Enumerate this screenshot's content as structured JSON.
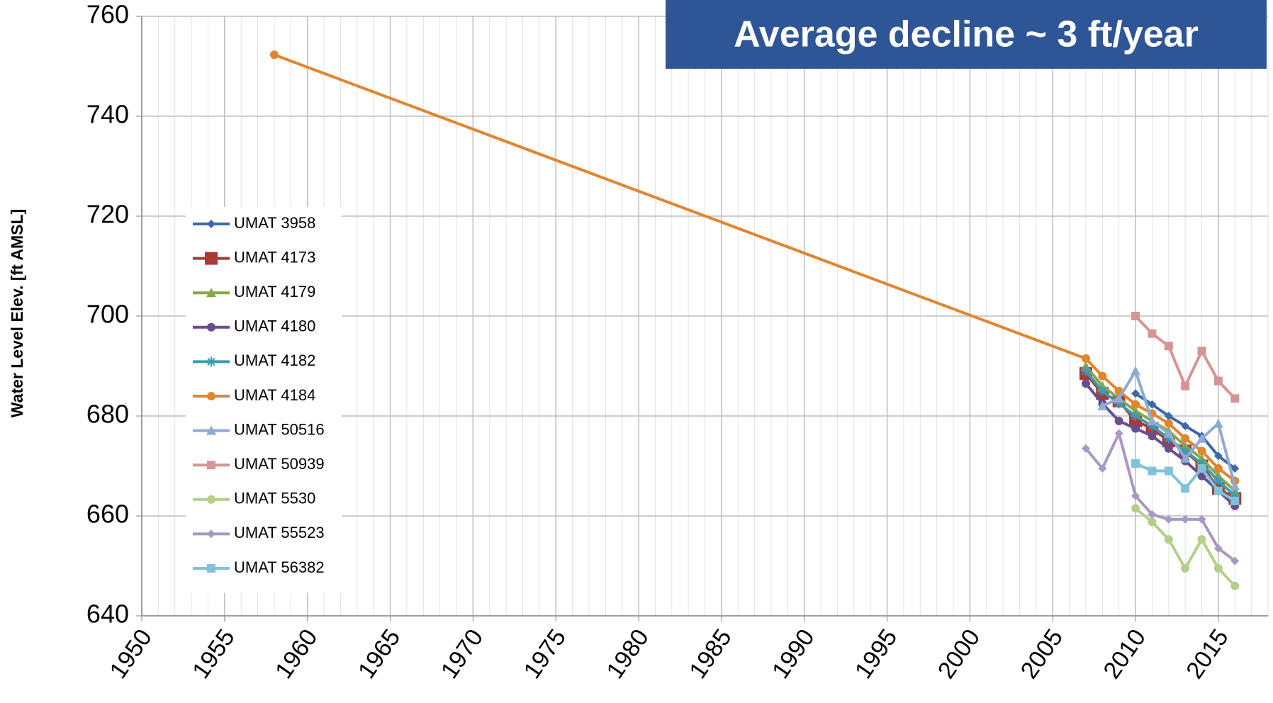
{
  "chart_data": {
    "type": "line",
    "annotation": "Average decline ~ 3 ft/year",
    "y_label": "Water Level Elev. [ft AMSL]",
    "x": [
      1958,
      2007,
      2008,
      2009,
      2010,
      2011,
      2012,
      2013,
      2014,
      2015,
      2016
    ],
    "xlim": [
      1950,
      2018
    ],
    "xticks": [
      1950,
      1955,
      1960,
      1965,
      1970,
      1975,
      1980,
      1985,
      1990,
      1995,
      2000,
      2005,
      2010,
      2015
    ],
    "ylim": [
      640,
      760
    ],
    "yticks": [
      640,
      660,
      680,
      700,
      720,
      740,
      760
    ],
    "grid": true,
    "minor_grid": true,
    "legend": "left",
    "series": [
      {
        "name": "UMAT 3958",
        "color": "#3c6aa8",
        "marker": "diamond",
        "values": [
          null,
          null,
          null,
          null,
          684.5,
          682.3,
          680,
          678,
          676,
          672,
          669.5
        ]
      },
      {
        "name": "UMAT 4173",
        "color": "#a83a37",
        "marker": "square-large",
        "values": [
          null,
          688.5,
          684.5,
          683,
          679,
          677.5,
          675,
          673,
          670,
          665.5,
          663.5
        ]
      },
      {
        "name": "UMAT 4179",
        "color": "#86a84a",
        "marker": "triangle",
        "values": [
          null,
          690,
          686,
          683.5,
          681,
          679,
          677,
          674,
          671.5,
          668,
          665
        ]
      },
      {
        "name": "UMAT 4180",
        "color": "#6a4d8e",
        "marker": "circle",
        "values": [
          null,
          686.5,
          682.5,
          679,
          677.5,
          676,
          673.5,
          671,
          668,
          665,
          662
        ]
      },
      {
        "name": "UMAT 4182",
        "color": "#3b9bb3",
        "marker": "asterisk",
        "values": [
          null,
          689,
          685,
          682.5,
          680,
          678,
          675.5,
          673,
          670.5,
          667,
          664
        ]
      },
      {
        "name": "UMAT 4184",
        "color": "#e1852f",
        "marker": "circle",
        "values": [
          752.3,
          691.5,
          688,
          685,
          682.3,
          680.5,
          678.5,
          675.5,
          673,
          669.5,
          667
        ]
      },
      {
        "name": "UMAT 50516",
        "color": "#8eaad6",
        "marker": "triangle",
        "values": [
          null,
          null,
          682,
          683.5,
          689,
          679,
          676.5,
          671.5,
          675.5,
          678.5,
          666
        ]
      },
      {
        "name": "UMAT 50939",
        "color": "#d69594",
        "marker": "square",
        "values": [
          null,
          null,
          null,
          null,
          700,
          696.5,
          694,
          686,
          693,
          687,
          683.5
        ]
      },
      {
        "name": "UMAT 5530",
        "color": "#b5cf8a",
        "marker": "circle",
        "values": [
          null,
          null,
          null,
          null,
          661.5,
          658.8,
          655.3,
          649.5,
          655.3,
          649.5,
          646
        ]
      },
      {
        "name": "UMAT 55523",
        "color": "#a898c2",
        "marker": "diamond",
        "values": [
          null,
          673.5,
          669.5,
          676.5,
          664,
          660.3,
          659.3,
          659.3,
          659.3,
          653.5,
          651
        ]
      },
      {
        "name": "UMAT 56382",
        "color": "#7fc3d9",
        "marker": "square",
        "values": [
          null,
          null,
          null,
          null,
          670.5,
          669,
          669,
          665.5,
          669.5,
          665,
          663
        ]
      }
    ]
  }
}
